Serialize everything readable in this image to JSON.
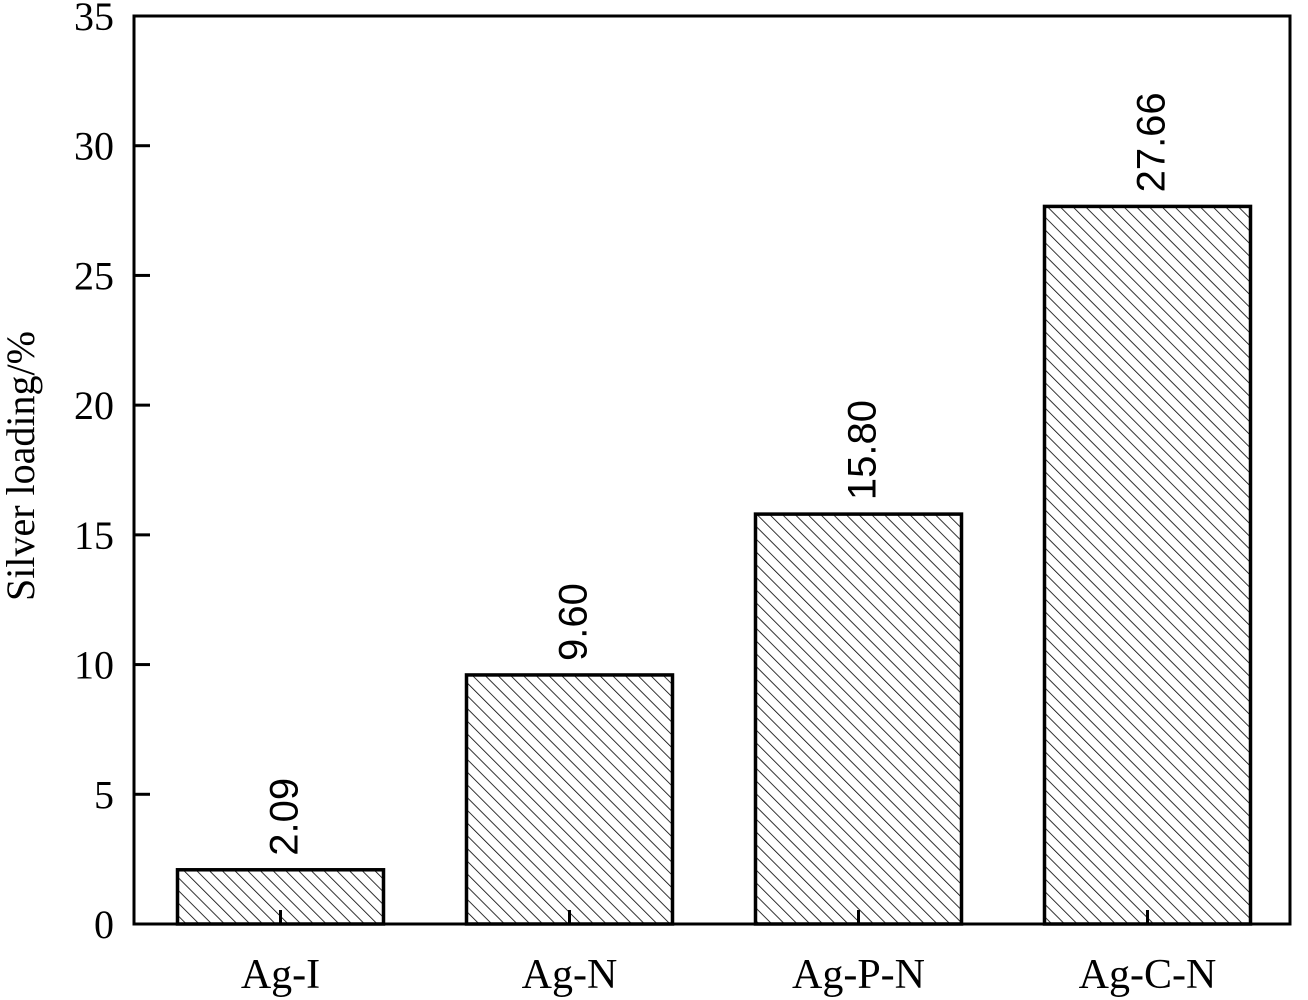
{
  "chart_data": {
    "type": "bar",
    "categories": [
      "Ag-I",
      "Ag-N",
      "Ag-P-N",
      "Ag-C-N"
    ],
    "values": [
      2.09,
      9.6,
      15.8,
      27.66
    ],
    "data_labels": [
      "2.09",
      "9.60",
      "15.80",
      "27.66"
    ],
    "ylabel": "Silver loading/%",
    "xlabel": "",
    "ylim": [
      0,
      35
    ],
    "yticks": [
      "0",
      "5",
      "10",
      "15",
      "20",
      "25",
      "30",
      "35"
    ],
    "grid": false,
    "legend": "none",
    "bar_fill": "hatched",
    "colors": {
      "bar_stroke": "#000000",
      "hatch": "#000000",
      "background": "#ffffff"
    }
  }
}
